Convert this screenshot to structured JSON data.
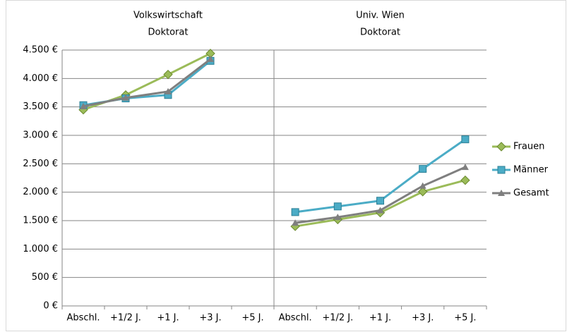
{
  "chart_data": [
    {
      "type": "line",
      "title": [
        "Volkswirtschaft",
        "Doktorat"
      ],
      "categories": [
        "Abschl.",
        "+1/2 J.",
        "+1 J.",
        "+3 J.",
        "+5 J."
      ],
      "series": [
        {
          "name": "Frauen",
          "color": "#9bbb59",
          "marker": "diamond",
          "values": [
            3450,
            3710,
            4070,
            4440,
            null
          ]
        },
        {
          "name": "Männer",
          "color": "#4bacc6",
          "marker": "square",
          "values": [
            3530,
            3650,
            3710,
            4310,
            null
          ]
        },
        {
          "name": "Gesamt",
          "color": "#7f7f7f",
          "marker": "triangle",
          "values": [
            3510,
            3660,
            3770,
            4340,
            null
          ]
        }
      ],
      "ylim": [
        0,
        4500
      ],
      "yticks": [
        {
          "value": 0,
          "label": "0 €"
        },
        {
          "value": 500,
          "label": "500 €"
        },
        {
          "value": 1000,
          "label": "1.000 €"
        },
        {
          "value": 1500,
          "label": "1.500 €"
        },
        {
          "value": 2000,
          "label": "2.000 €"
        },
        {
          "value": 2500,
          "label": "2.500 €"
        },
        {
          "value": 3000,
          "label": "3.000 €"
        },
        {
          "value": 3500,
          "label": "3.500 €"
        },
        {
          "value": 4000,
          "label": "4.000 €"
        },
        {
          "value": 4500,
          "label": "4.500 €"
        }
      ],
      "grid": true
    },
    {
      "type": "line",
      "title": [
        "Univ. Wien",
        "Doktorat"
      ],
      "categories": [
        "Abschl.",
        "+1/2 J.",
        "+1 J.",
        "+3 J.",
        "+5 J."
      ],
      "series": [
        {
          "name": "Frauen",
          "color": "#9bbb59",
          "marker": "diamond",
          "values": [
            1400,
            1520,
            1640,
            2010,
            2210
          ]
        },
        {
          "name": "Männer",
          "color": "#4bacc6",
          "marker": "square",
          "values": [
            1650,
            1750,
            1850,
            2410,
            2930
          ]
        },
        {
          "name": "Gesamt",
          "color": "#7f7f7f",
          "marker": "triangle",
          "values": [
            1460,
            1560,
            1680,
            2110,
            2440
          ]
        }
      ],
      "ylim": [
        0,
        4500
      ],
      "yticks": [
        {
          "value": 0,
          "label": "0 €"
        },
        {
          "value": 500,
          "label": "500 €"
        },
        {
          "value": 1000,
          "label": "1.000 €"
        },
        {
          "value": 1500,
          "label": "1.500 €"
        },
        {
          "value": 2000,
          "label": "2.000 €"
        },
        {
          "value": 2500,
          "label": "2.500 €"
        },
        {
          "value": 3000,
          "label": "3.000 €"
        },
        {
          "value": 3500,
          "label": "3.500 €"
        },
        {
          "value": 4000,
          "label": "4.000 €"
        },
        {
          "value": 4500,
          "label": "4.500 €"
        }
      ],
      "grid": true,
      "legend": "right"
    }
  ]
}
